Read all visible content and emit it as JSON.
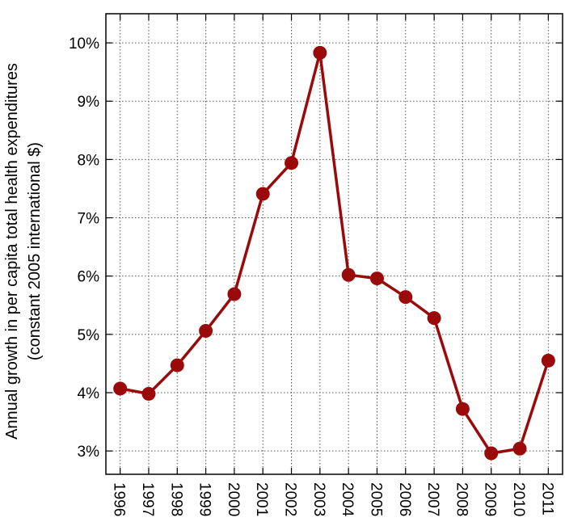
{
  "chart_data": {
    "type": "line",
    "title": "",
    "xlabel": "",
    "ylabel_lines": [
      "Annual growth in per capita total health expenditures",
      "(constant 2005 international $)"
    ],
    "categories": [
      "1996",
      "1997",
      "1998",
      "1999",
      "2000",
      "2001",
      "2002",
      "2003",
      "2004",
      "2005",
      "2006",
      "2007",
      "2008",
      "2009",
      "2010",
      "2011"
    ],
    "series": [
      {
        "values": [
          4.07,
          3.98,
          4.47,
          5.06,
          5.69,
          7.41,
          7.94,
          9.83,
          6.02,
          5.96,
          5.64,
          5.28,
          3.72,
          2.96,
          3.04,
          4.55
        ]
      }
    ],
    "ylim": [
      2.6,
      10.5
    ],
    "yticks": [
      3,
      4,
      5,
      6,
      7,
      8,
      9,
      10
    ],
    "ytick_labels": [
      "3%",
      "4%",
      "5%",
      "6%",
      "7%",
      "8%",
      "9%",
      "10%"
    ],
    "grid": true,
    "grid_style": "dotted",
    "legend": "none",
    "colors": {
      "line": "#9b0a0a",
      "marker": "#9b0a0a",
      "axis": "#000000",
      "grid": "#555555"
    }
  }
}
